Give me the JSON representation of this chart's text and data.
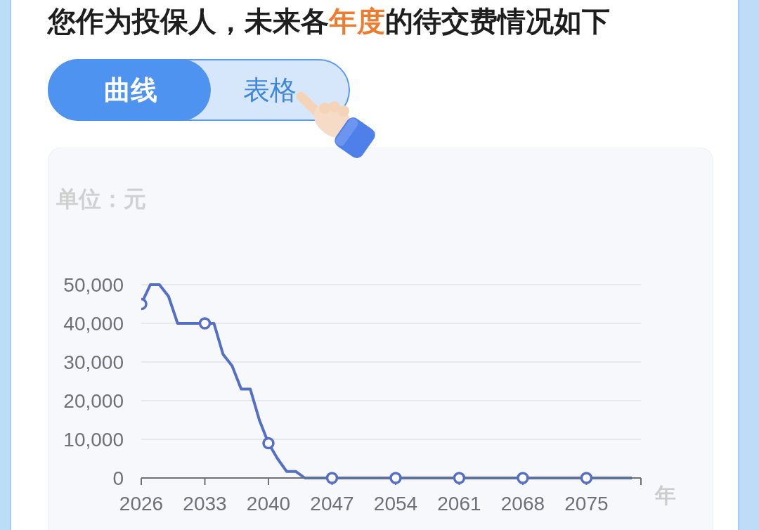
{
  "chart_data": {
    "type": "line",
    "title": "您作为投保人，未来各年度的待交费情况如下",
    "xlabel": "年",
    "ylabel": "单位：元",
    "annotations": [
      "曲线",
      "表格"
    ],
    "x": [
      2026,
      2027,
      2028,
      2029,
      2030,
      2031,
      2032,
      2033,
      2034,
      2035,
      2036,
      2037,
      2038,
      2039,
      2040,
      2041,
      2042,
      2043,
      2044,
      2045,
      2046,
      2047,
      2048,
      2049,
      2050,
      2051,
      2052,
      2053,
      2054,
      2055,
      2056,
      2057,
      2058,
      2059,
      2060,
      2061,
      2062,
      2063,
      2064,
      2065,
      2066,
      2067,
      2068,
      2069,
      2070,
      2071,
      2072,
      2073,
      2074,
      2075,
      2076,
      2077,
      2078,
      2079,
      2080
    ],
    "series": [
      {
        "color": "#5470c6",
        "values": [
          45000,
          50000,
          50000,
          47000,
          40000,
          40000,
          40000,
          40000,
          40000,
          32000,
          29000,
          23000,
          23000,
          15000,
          9000,
          5000,
          1700,
          1700,
          0,
          0,
          0,
          0,
          0,
          0,
          0,
          0,
          0,
          0,
          0,
          0,
          0,
          0,
          0,
          0,
          0,
          0,
          0,
          0,
          0,
          0,
          0,
          0,
          0,
          0,
          0,
          0,
          0,
          0,
          0,
          0,
          0,
          0,
          0,
          0,
          0
        ]
      },
      {
        "type": "scatter",
        "color": "#5470c6",
        "marker": "circle",
        "x": [
          2026,
          2033,
          2040,
          2047,
          2054,
          2061,
          2068,
          2075
        ],
        "values": [
          45000,
          40000,
          9000,
          0,
          0,
          0,
          0,
          0
        ]
      }
    ],
    "line_style": "solid",
    "grid": "y",
    "xlim": [
      2026,
      2081
    ],
    "xticks": [
      2026,
      2033,
      2040,
      2047,
      2054,
      2061,
      2068,
      2075,
      {
        "value": 2081,
        "label": null
      }
    ],
    "ylim": [
      0,
      50000
    ],
    "yticks": [
      0,
      {
        "value": 10000,
        "label": "10,000"
      },
      {
        "value": 20000,
        "label": "20,000"
      },
      {
        "value": 30000,
        "label": "30,000"
      },
      {
        "value": 40000,
        "label": "40,000"
      },
      {
        "value": 50000,
        "label": "50,000"
      }
    ]
  }
}
